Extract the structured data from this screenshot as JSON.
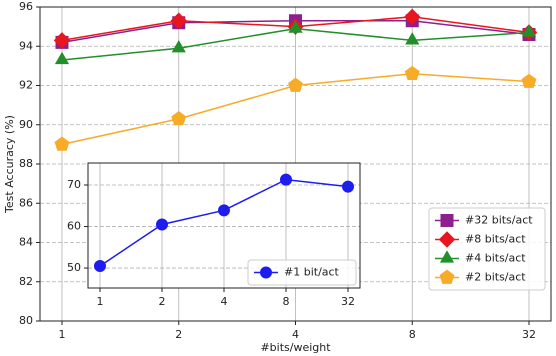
{
  "chart_data": [
    {
      "type": "line",
      "x_label": "#bits/weight",
      "y_label": "Test Accuracy (%)",
      "categories": [
        "1",
        "2",
        "4",
        "8",
        "32"
      ],
      "series": [
        {
          "name": "#32 bits/act",
          "color": "#8e1f8e",
          "marker": "square",
          "values": [
            94.2,
            95.2,
            95.3,
            95.3,
            94.6
          ]
        },
        {
          "name": "#8 bits/act",
          "color": "#e8161e",
          "marker": "diamond",
          "values": [
            94.3,
            95.3,
            95.0,
            95.5,
            94.7
          ]
        },
        {
          "name": "#4 bits/act",
          "color": "#22902a",
          "marker": "triangle",
          "values": [
            93.3,
            93.9,
            94.9,
            94.3,
            94.7
          ]
        },
        {
          "name": "#2 bits/act",
          "color": "#f7ab27",
          "marker": "pentagon",
          "values": [
            89.0,
            90.3,
            92.0,
            92.6,
            92.2
          ]
        }
      ],
      "ylim": [
        80,
        96
      ],
      "yticks": [
        80,
        82,
        84,
        86,
        88,
        90,
        92,
        94,
        96
      ],
      "grid": true,
      "legend": "lower right"
    },
    {
      "type": "line",
      "categories": [
        "1",
        "2",
        "4",
        "8",
        "32"
      ],
      "series": [
        {
          "name": "#1 bit/act",
          "color": "#1d1df0",
          "marker": "circle",
          "values": [
            50.5,
            60.5,
            63.9,
            71.3,
            69.6
          ]
        }
      ],
      "ylim": [
        45.2,
        75.3
      ],
      "yticks": [
        50,
        60,
        70
      ],
      "grid": true,
      "legend": "lower right"
    }
  ]
}
